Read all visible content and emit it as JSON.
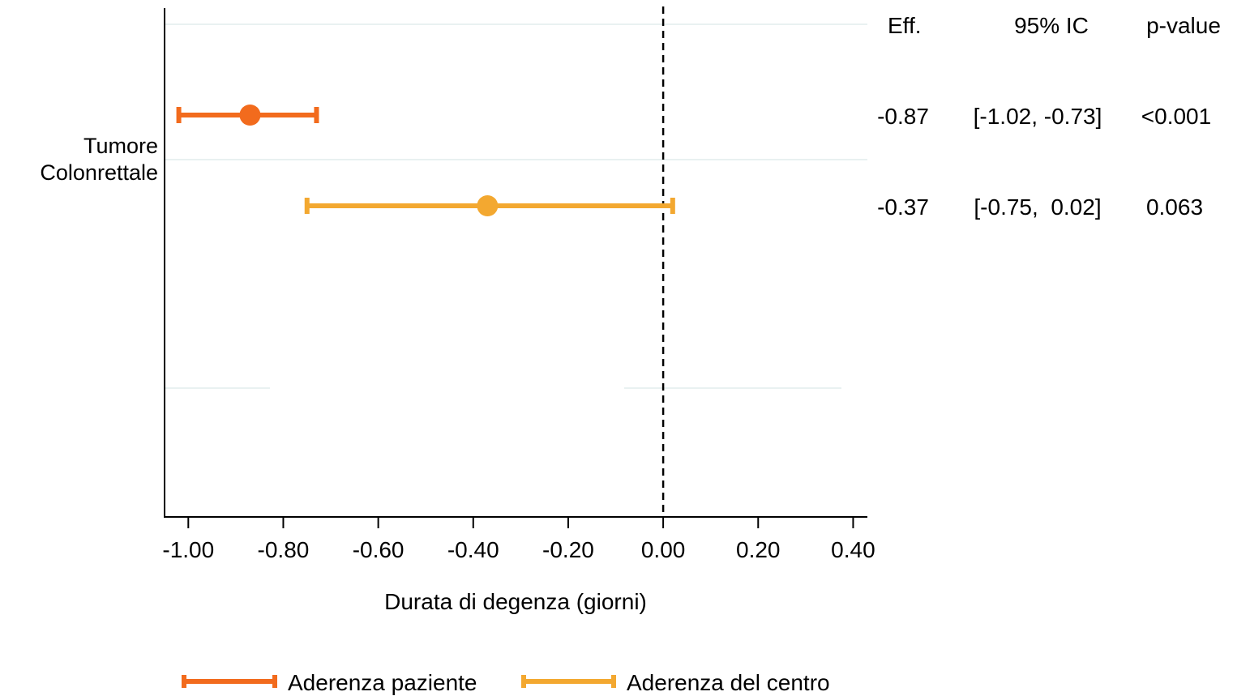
{
  "chart_data": {
    "type": "forest",
    "xlabel": "Durata di degenza (giorni)",
    "xlim": [
      -1.05,
      0.43
    ],
    "x_ticks": [
      -1.0,
      -0.8,
      -0.6,
      -0.4,
      -0.2,
      0.0,
      0.2,
      0.4
    ],
    "x_tick_labels": [
      "-1.00",
      "-0.80",
      "-0.60",
      "-0.40",
      "-0.20",
      "0.00",
      "0.20",
      "0.40"
    ],
    "reference_line": 0,
    "groups": [
      {
        "label_lines": [
          "Tumore",
          "Colonrettale"
        ]
      }
    ],
    "table_headers": {
      "effect": "Eff.",
      "ci": "95% IC",
      "p": "p-value"
    },
    "series": [
      {
        "name": "Aderenza paziente",
        "color": "#f26b1d",
        "estimate": -0.87,
        "lower": -1.02,
        "upper": -0.73,
        "effect_text": "-0.87",
        "ci_text": "[-1.02, -0.73]",
        "p_text": "<0.001"
      },
      {
        "name": "Aderenza del centro",
        "color": "#f3a830",
        "estimate": -0.37,
        "lower": -0.75,
        "upper": 0.02,
        "effect_text": "-0.37",
        "ci_text": "[-0.75,  0.02]",
        "p_text": "0.063"
      }
    ],
    "legend_position": "bottom"
  }
}
